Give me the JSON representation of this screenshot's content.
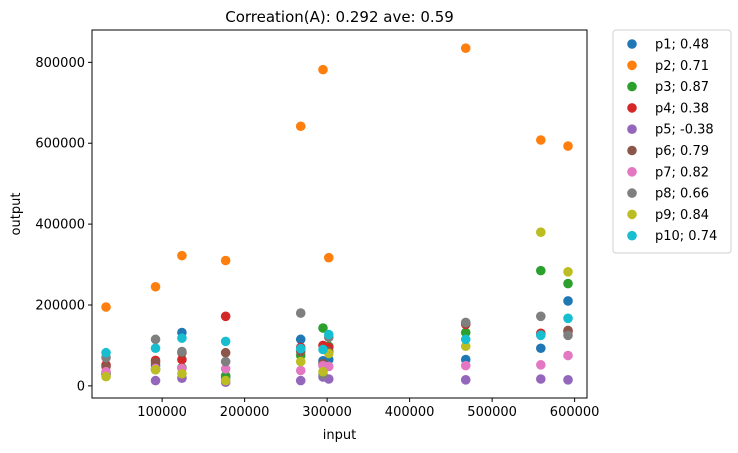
{
  "chart_data": {
    "type": "scatter",
    "title": "Correation(A): 0.292 ave: 0.59",
    "xlabel": "input",
    "ylabel": "output",
    "xlim": [
      15000,
      615000
    ],
    "ylim": [
      -30000,
      880000
    ],
    "xticks": [
      100000,
      200000,
      300000,
      400000,
      500000,
      600000
    ],
    "xtick_labels": [
      "100000",
      "200000",
      "300000",
      "400000",
      "500000",
      "600000"
    ],
    "yticks": [
      0,
      200000,
      400000,
      600000,
      800000
    ],
    "ytick_labels": [
      "0",
      "200000",
      "400000",
      "600000",
      "800000"
    ],
    "grid": false,
    "legend_position": "outside-top-right",
    "x": [
      32000,
      92000,
      124000,
      177000,
      268000,
      295000,
      302000,
      468000,
      559000,
      592000
    ],
    "series": [
      {
        "name": "p1",
        "label": "p1; 0.48",
        "color": "#1f77b4",
        "values": [
          30000,
          50000,
          132000,
          20000,
          115000,
          62000,
          65000,
          65000,
          93000,
          210000
        ]
      },
      {
        "name": "p2",
        "label": "p2; 0.71",
        "color": "#ff7f0e",
        "values": [
          195000,
          245000,
          322000,
          310000,
          642000,
          782000,
          317000,
          835000,
          608000,
          593000
        ]
      },
      {
        "name": "p3",
        "label": "p3; 0.87",
        "color": "#2ca02c",
        "values": [
          30000,
          40000,
          45000,
          25000,
          75000,
          143000,
          98000,
          132000,
          285000,
          253000
        ]
      },
      {
        "name": "p4",
        "label": "p4; 0.38",
        "color": "#d62728",
        "values": [
          52000,
          63000,
          65000,
          172000,
          95000,
          100000,
          95000,
          152000,
          130000,
          135000
        ]
      },
      {
        "name": "p5",
        "label": "p5; -0.38",
        "color": "#9467bd",
        "values": [
          28000,
          13000,
          19000,
          9000,
          13000,
          22000,
          17000,
          15000,
          17000,
          15000
        ]
      },
      {
        "name": "p6",
        "label": "p6; 0.79",
        "color": "#8c564b",
        "values": [
          48000,
          58000,
          82000,
          82000,
          85000,
          55000,
          85000,
          155000,
          127000,
          137000
        ]
      },
      {
        "name": "p7",
        "label": "p7; 0.82",
        "color": "#e377c2",
        "values": [
          35000,
          43000,
          43000,
          42000,
          38000,
          50000,
          48000,
          50000,
          52000,
          75000
        ]
      },
      {
        "name": "p8",
        "label": "p8; 0.66",
        "color": "#7f7f7f",
        "values": [
          70000,
          115000,
          85000,
          60000,
          180000,
          28000,
          120000,
          157000,
          172000,
          125000
        ]
      },
      {
        "name": "p9",
        "label": "p9; 0.84",
        "color": "#bcbd22",
        "values": [
          23000,
          40000,
          30000,
          13000,
          60000,
          35000,
          80000,
          98000,
          380000,
          282000
        ]
      },
      {
        "name": "p10",
        "label": "p10; 0.74",
        "color": "#17becf",
        "values": [
          82000,
          93000,
          118000,
          110000,
          92000,
          90000,
          127000,
          115000,
          125000,
          167000
        ]
      }
    ]
  }
}
